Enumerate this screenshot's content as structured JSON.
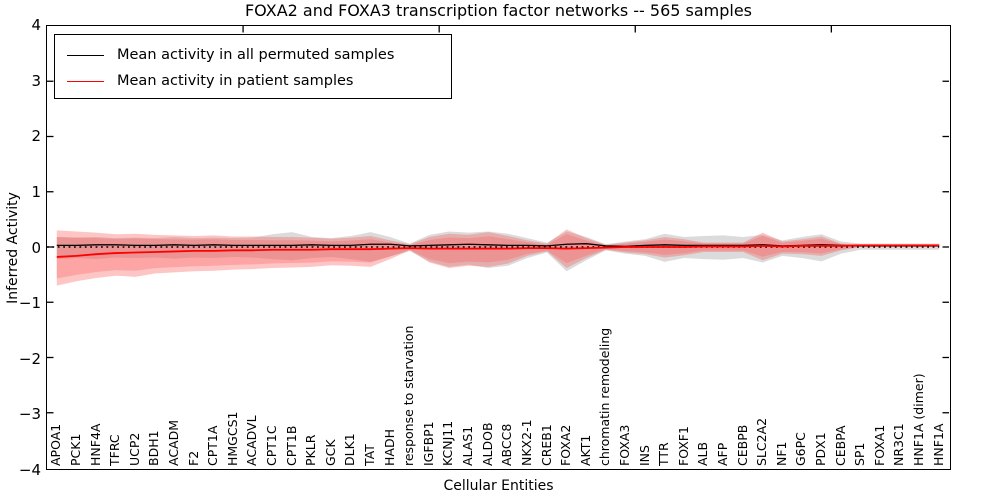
{
  "chart_data": {
    "type": "line",
    "title": "FOXA2 and FOXA3 transcription factor networks -- 565 samples",
    "xlabel": "Cellular Entities",
    "ylabel": "Inferred Activity",
    "ylim": [
      -4,
      4
    ],
    "ytick_labels": [
      "4",
      "3",
      "2",
      "1",
      "0",
      "−1",
      "−2",
      "−3",
      "−4"
    ],
    "grid": false,
    "legend_position": "upper left",
    "categories": [
      "APOA1",
      "PCK1",
      "HNF4A",
      "TFRC",
      "UCP2",
      "BDH1",
      "ACADM",
      "F2",
      "CPT1A",
      "HMGCS1",
      "ACADVL",
      "CPT1C",
      "CPT1B",
      "PKLR",
      "GCK",
      "DLK1",
      "TAT",
      "HADH",
      "response to starvation",
      "IGFBP1",
      "KCNJ11",
      "ALAS1",
      "ALDOB",
      "ABCC8",
      "NKX2-1",
      "CREB1",
      "FOXA2",
      "AKT1",
      "chromatin remodeling",
      "FOXA3",
      "INS",
      "TTR",
      "FOXF1",
      "ALB",
      "AFP",
      "CEBPB",
      "SLC2A2",
      "NF1",
      "G6PC",
      "PDX1",
      "CEBPA",
      "SP1",
      "FOXA1",
      "NR3C1",
      "HNF1A (dimer)",
      "HNF1A"
    ],
    "series": [
      {
        "name": "Mean activity in all permuted samples",
        "color": "#000000",
        "values": [
          0.03,
          0.03,
          0.04,
          0.04,
          0.03,
          0.03,
          0.04,
          0.03,
          0.04,
          0.03,
          0.03,
          0.03,
          0.03,
          0.04,
          0.03,
          0.03,
          0.05,
          0.05,
          0.02,
          0.03,
          0.04,
          0.05,
          0.04,
          0.03,
          0.03,
          0.02,
          0.05,
          0.06,
          0.02,
          0.01,
          0.03,
          0.04,
          0.03,
          0.03,
          0.03,
          0.03,
          0.04,
          0.02,
          0.03,
          0.04,
          0.03,
          0.02,
          0.02,
          0.02,
          0.02,
          0.02
        ]
      },
      {
        "name": "Mean activity in patient samples",
        "color": "#ff0000",
        "values": [
          -0.18,
          -0.16,
          -0.13,
          -0.11,
          -0.1,
          -0.09,
          -0.08,
          -0.07,
          -0.07,
          -0.06,
          -0.06,
          -0.05,
          -0.05,
          -0.05,
          -0.04,
          -0.04,
          -0.04,
          -0.03,
          -0.02,
          -0.03,
          -0.03,
          -0.03,
          -0.03,
          -0.03,
          -0.02,
          -0.02,
          -0.03,
          -0.02,
          -0.01,
          0.0,
          0.0,
          0.0,
          0.0,
          0.01,
          0.01,
          0.01,
          0.02,
          0.01,
          0.02,
          0.02,
          0.02,
          0.03,
          0.03,
          0.03,
          0.03,
          0.03
        ]
      }
    ],
    "bands": [
      {
        "name": "permuted samples range",
        "color": "#888888",
        "opacity": 0.3,
        "upper": [
          0.18,
          0.17,
          0.18,
          0.16,
          0.17,
          0.16,
          0.18,
          0.16,
          0.17,
          0.16,
          0.17,
          0.23,
          0.27,
          0.18,
          0.16,
          0.2,
          0.27,
          0.18,
          0.06,
          0.22,
          0.28,
          0.26,
          0.28,
          0.24,
          0.16,
          0.08,
          0.28,
          0.18,
          0.05,
          0.1,
          0.14,
          0.24,
          0.18,
          0.2,
          0.21,
          0.18,
          0.22,
          0.12,
          0.18,
          0.23,
          0.1,
          0.06,
          0.06,
          0.06,
          0.06,
          0.06
        ],
        "lower": [
          -0.22,
          -0.2,
          -0.22,
          -0.19,
          -0.2,
          -0.19,
          -0.21,
          -0.19,
          -0.2,
          -0.18,
          -0.19,
          -0.22,
          -0.24,
          -0.2,
          -0.18,
          -0.22,
          -0.27,
          -0.17,
          -0.07,
          -0.26,
          -0.36,
          -0.32,
          -0.38,
          -0.34,
          -0.2,
          -0.1,
          -0.44,
          -0.24,
          -0.06,
          -0.12,
          -0.16,
          -0.27,
          -0.2,
          -0.22,
          -0.23,
          -0.2,
          -0.28,
          -0.16,
          -0.2,
          -0.26,
          -0.12,
          -0.05,
          -0.05,
          -0.05,
          -0.05,
          -0.05
        ]
      },
      {
        "name": "patient samples range",
        "color": "#fc4f4f",
        "opacity": 0.33,
        "upper": [
          0.3,
          0.28,
          0.26,
          0.23,
          0.24,
          0.22,
          0.21,
          0.2,
          0.21,
          0.19,
          0.19,
          0.18,
          0.18,
          0.17,
          0.15,
          0.17,
          0.2,
          0.12,
          0.05,
          0.18,
          0.24,
          0.22,
          0.27,
          0.2,
          0.12,
          0.06,
          0.32,
          0.16,
          0.04,
          0.08,
          0.12,
          0.18,
          0.14,
          0.08,
          0.08,
          0.08,
          0.26,
          0.1,
          0.14,
          0.19,
          0.06,
          0.05,
          0.05,
          0.05,
          0.05,
          0.05
        ],
        "lower": [
          -0.7,
          -0.62,
          -0.56,
          -0.52,
          -0.54,
          -0.48,
          -0.46,
          -0.44,
          -0.43,
          -0.41,
          -0.4,
          -0.38,
          -0.37,
          -0.36,
          -0.33,
          -0.34,
          -0.36,
          -0.22,
          -0.06,
          -0.28,
          -0.38,
          -0.34,
          -0.36,
          -0.3,
          -0.16,
          -0.08,
          -0.38,
          -0.2,
          -0.05,
          -0.1,
          -0.13,
          -0.19,
          -0.15,
          -0.09,
          -0.09,
          -0.09,
          -0.24,
          -0.12,
          -0.13,
          -0.16,
          -0.06,
          0.0,
          0.0,
          0.0,
          0.0,
          0.0
        ]
      }
    ],
    "zero_line": {
      "value": 0,
      "color": "#000000",
      "style": "dotted"
    }
  }
}
